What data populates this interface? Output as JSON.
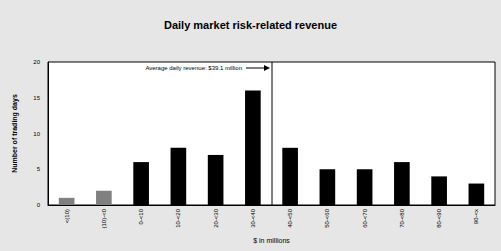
{
  "chart_data": {
    "type": "bar",
    "title": "Daily market risk-related revenue",
    "x_label": "$ in millions",
    "y_label": "Number of trading days",
    "annotation": "Average daily revenue: $39.1 million",
    "categories": [
      "<(10)",
      "(10)-<0",
      "0-<10",
      "10-<20",
      "20-<30",
      "30-<40",
      "40-<50",
      "50-<60",
      "60-<70",
      "70-<80",
      "80-<90",
      "90-<x"
    ],
    "values": [
      1,
      2,
      6,
      8,
      7,
      16,
      8,
      5,
      5,
      6,
      4,
      3
    ],
    "colors": [
      "#808080",
      "#808080",
      "#000000",
      "#000000",
      "#000000",
      "#000000",
      "#000000",
      "#000000",
      "#000000",
      "#000000",
      "#000000",
      "#000000"
    ],
    "ylim": [
      0,
      20
    ],
    "yticks": [
      0,
      5,
      10,
      15,
      20
    ],
    "grid": false
  }
}
